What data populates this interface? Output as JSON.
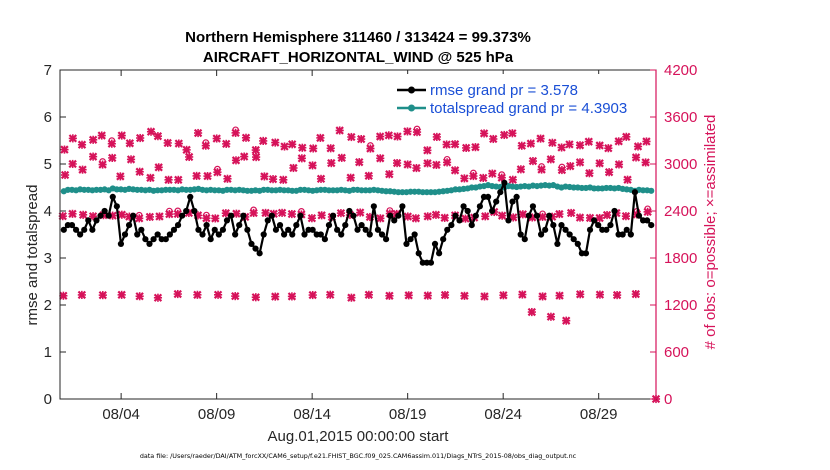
{
  "chart_data": {
    "type": "line",
    "title_line1": "Northern Hemisphere 311460 / 313424 = 99.373%",
    "title_line2": "AIRCRAFT_HORIZONTAL_WIND @ 525 hPa",
    "ylabel": "rmse and totalspread",
    "ylabel_right": "# of obs: o=possible; ×=assimilated",
    "xlabel": "Aug.01,2015 00:00:00 start",
    "footnote": "data file: /Users/raeder/DAI/ATM_forcXX/CAM6_setup/f.e21.FHIST_BGC.f09_025.CAM6assim.011/Diags_NTrS_2015-08/obs_diag_output.nc",
    "ylim_left": [
      0,
      7
    ],
    "ylim_right": [
      0,
      4200
    ],
    "xlim": [
      0.8,
      32.0
    ],
    "yticks_left": [
      "0",
      "1",
      "2",
      "3",
      "4",
      "5",
      "6",
      "7"
    ],
    "yticks_right": [
      "0",
      "600",
      "1200",
      "1800",
      "2400",
      "3000",
      "3600",
      "4200"
    ],
    "xticks": [
      {
        "x": 4,
        "label": "08/04"
      },
      {
        "x": 9,
        "label": "08/09"
      },
      {
        "x": 14,
        "label": "08/14"
      },
      {
        "x": 19,
        "label": "08/19"
      },
      {
        "x": 24,
        "label": "08/24"
      },
      {
        "x": 29,
        "label": "08/29"
      }
    ],
    "series": [
      {
        "name": "rmse grand pr = 3.578",
        "color": "#000000",
        "values": [
          3.6,
          3.7,
          3.7,
          3.6,
          3.5,
          3.6,
          3.8,
          3.6,
          3.8,
          3.9,
          4.0,
          3.9,
          4.3,
          4.1,
          3.3,
          3.5,
          3.7,
          3.9,
          3.5,
          3.6,
          3.4,
          3.3,
          3.4,
          3.5,
          3.4,
          3.4,
          3.5,
          3.6,
          3.7,
          3.9,
          4.0,
          4.3,
          4.0,
          3.6,
          3.5,
          3.7,
          3.4,
          3.6,
          3.5,
          3.6,
          3.8,
          3.9,
          3.5,
          3.7,
          3.9,
          3.6,
          3.3,
          3.2,
          3.1,
          3.5,
          3.8,
          3.9,
          3.6,
          3.7,
          3.5,
          3.6,
          3.5,
          3.7,
          3.9,
          3.5,
          3.6,
          3.6,
          3.5,
          3.5,
          3.4,
          3.7,
          3.9,
          3.6,
          3.5,
          3.7,
          4.0,
          3.9,
          3.6,
          3.7,
          3.6,
          3.5,
          4.1,
          3.6,
          3.5,
          3.4,
          3.9,
          3.8,
          3.9,
          4.1,
          3.3,
          3.4,
          3.5,
          3.1,
          2.9,
          2.9,
          2.9,
          3.3,
          3.1,
          3.4,
          3.6,
          3.7,
          3.9,
          3.8,
          4.1,
          4.0,
          3.7,
          3.9,
          4.1,
          4.3,
          4.3,
          4.0,
          4.2,
          4.4,
          4.6,
          3.8,
          4.2,
          4.3,
          3.5,
          3.4,
          3.9,
          4.1,
          3.9,
          3.5,
          3.6,
          3.9,
          3.7,
          3.3,
          3.7,
          3.6,
          3.5,
          3.4,
          3.3,
          3.1,
          3.1,
          3.6,
          3.8,
          3.7,
          3.6,
          3.6,
          3.7,
          4.0,
          3.5,
          3.5,
          3.6,
          3.5,
          4.4,
          3.9,
          3.8,
          3.8,
          3.7
        ]
      },
      {
        "name": "totalspread grand pr = 4.3903",
        "color": "#1f8f8a",
        "values": [
          4.42,
          4.45,
          4.45,
          4.44,
          4.46,
          4.45,
          4.45,
          4.44,
          4.45,
          4.45,
          4.46,
          4.44,
          4.48,
          4.46,
          4.46,
          4.45,
          4.47,
          4.46,
          4.45,
          4.45,
          4.44,
          4.45,
          4.43,
          4.44,
          4.44,
          4.45,
          4.45,
          4.45,
          4.44,
          4.46,
          4.45,
          4.45,
          4.46,
          4.47,
          4.45,
          4.44,
          4.45,
          4.44,
          4.44,
          4.43,
          4.45,
          4.45,
          4.44,
          4.45,
          4.44,
          4.43,
          4.43,
          4.44,
          4.43,
          4.45,
          4.45,
          4.44,
          4.44,
          4.45,
          4.44,
          4.44,
          4.43,
          4.43,
          4.45,
          4.45,
          4.44,
          4.43,
          4.44,
          4.45,
          4.45,
          4.44,
          4.44,
          4.44,
          4.45,
          4.44,
          4.43,
          4.45,
          4.45,
          4.44,
          4.44,
          4.44,
          4.45,
          4.44,
          4.43,
          4.42,
          4.42,
          4.41,
          4.4,
          4.4,
          4.4,
          4.41,
          4.41,
          4.41,
          4.4,
          4.4,
          4.4,
          4.4,
          4.41,
          4.42,
          4.43,
          4.44,
          4.46,
          4.46,
          4.47,
          4.48,
          4.5,
          4.5,
          4.52,
          4.53,
          4.55,
          4.53,
          4.52,
          4.51,
          4.5,
          4.53,
          4.52,
          4.51,
          4.52,
          4.53,
          4.52,
          4.54,
          4.53,
          4.54,
          4.55,
          4.54,
          4.55,
          4.52,
          4.5,
          4.52,
          4.51,
          4.5,
          4.5,
          4.49,
          4.49,
          4.5,
          4.48,
          4.48,
          4.48,
          4.49,
          4.49,
          4.48,
          4.49,
          4.47,
          4.46,
          4.45,
          4.43,
          4.45,
          4.44,
          4.44,
          4.43
        ]
      }
    ],
    "obs_clusters_right": [
      {
        "center": 1316,
        "amp": 24,
        "seed": 1
      },
      {
        "center": 2345,
        "amp": 45,
        "seed": 2
      },
      {
        "center": 2950,
        "amp": 160,
        "seed": 3
      },
      {
        "center": 3300,
        "amp": 130,
        "seed": 4
      }
    ],
    "obs_low_points_right": [
      {
        "x": 25.5,
        "y": 1110
      },
      {
        "x": 26.5,
        "y": 1050
      },
      {
        "x": 27.3,
        "y": 1000
      },
      {
        "x": 32.0,
        "y": 0
      }
    ],
    "colors": {
      "rmse": "#000000",
      "spread": "#1f8f8a",
      "obs": "#d6135a",
      "legend_text": "#1a4fd6",
      "axis": "#262626"
    }
  }
}
